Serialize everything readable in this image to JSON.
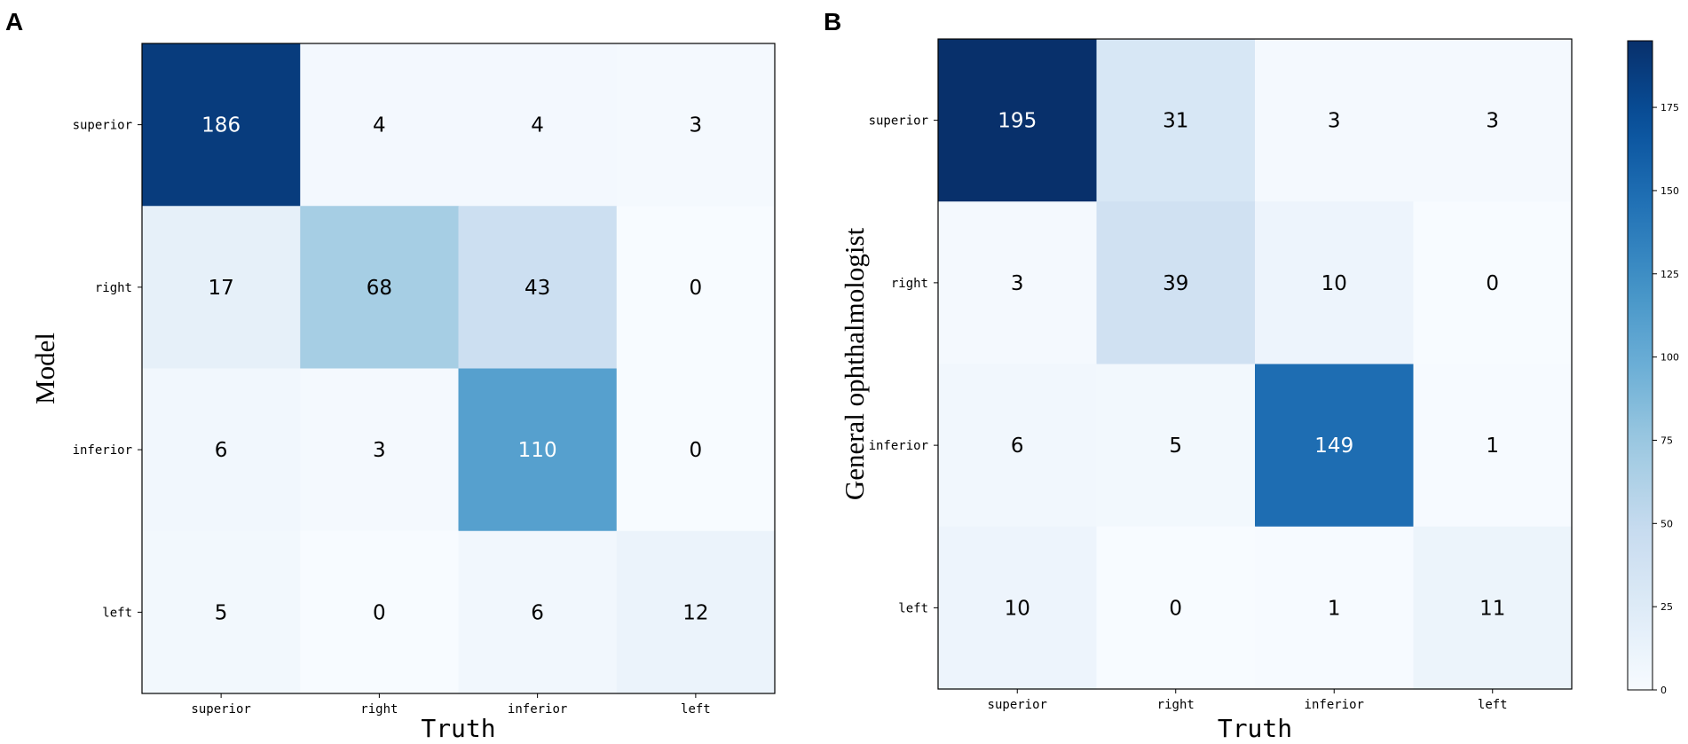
{
  "chart_data": [
    {
      "type": "heatmap",
      "panel_label": "A",
      "title": "",
      "xlabel": "Truth",
      "ylabel": "Model",
      "x_categories": [
        "superior",
        "right",
        "inferior",
        "left"
      ],
      "y_categories": [
        "superior",
        "right",
        "inferior",
        "left"
      ],
      "values": [
        [
          186,
          4,
          4,
          3
        ],
        [
          17,
          68,
          43,
          0
        ],
        [
          6,
          3,
          110,
          0
        ],
        [
          5,
          0,
          6,
          12
        ]
      ]
    },
    {
      "type": "heatmap",
      "panel_label": "B",
      "title": "",
      "xlabel": "Truth",
      "ylabel": "General ophthalmologist",
      "x_categories": [
        "superior",
        "right",
        "inferior",
        "left"
      ],
      "y_categories": [
        "superior",
        "right",
        "inferior",
        "left"
      ],
      "values": [
        [
          195,
          31,
          3,
          3
        ],
        [
          3,
          39,
          10,
          0
        ],
        [
          6,
          5,
          149,
          1
        ],
        [
          10,
          0,
          1,
          11
        ]
      ]
    }
  ],
  "colorbar": {
    "colormap": "Blues",
    "range": [
      0,
      195
    ],
    "ticks": [
      0,
      25,
      50,
      75,
      100,
      125,
      150,
      175
    ]
  },
  "colors": {
    "cmap_low": "#f7fbff",
    "cmap_high": "#08306b",
    "text_dark": "#000000",
    "text_light": "#ffffff"
  }
}
